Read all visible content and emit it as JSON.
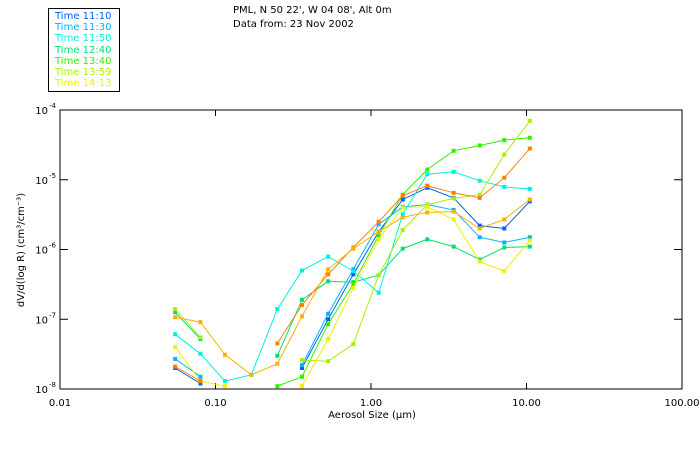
{
  "header": {
    "line1": "PML, N 50 22', W 04 08', Alt 0m",
    "line2": "Data from: 23 Nov 2002"
  },
  "chart_data": {
    "type": "line",
    "title": "PML, N 50 22', W 04 08', Alt 0m",
    "subtitle": "Data from: 23 Nov 2002",
    "xlabel": "Aerosol Size (µm)",
    "ylabel": "dV/d(log R)  (cm³/cm⁻³)",
    "xscale": "log",
    "yscale": "log",
    "xlim": [
      0.01,
      100
    ],
    "ylim": [
      1e-08,
      0.0001
    ],
    "xticks": [
      "0.01",
      "0.10",
      "1.00",
      "10.00",
      "100.00"
    ],
    "xtick_values": [
      0.01,
      0.1,
      1,
      10,
      100
    ],
    "yticks": [
      {
        "base": "10",
        "exp": "-4",
        "value": 0.0001
      },
      {
        "base": "10",
        "exp": "-5",
        "value": 1e-05
      },
      {
        "base": "10",
        "exp": "-6",
        "value": 1e-06
      },
      {
        "base": "10",
        "exp": "-7",
        "value": 1e-07
      },
      {
        "base": "10",
        "exp": "-8",
        "value": 1e-08
      }
    ],
    "grid": false,
    "legend_position": "top-left, outside plot",
    "x": [
      0.055,
      0.08,
      0.115,
      0.17,
      0.25,
      0.36,
      0.53,
      0.77,
      1.12,
      1.6,
      2.3,
      3.4,
      5.0,
      7.2,
      10.5
    ],
    "series": [
      {
        "name": "Time 11:10",
        "color": "#0060ff",
        "values": [
          2e-08,
          1.2e-08,
          null,
          null,
          null,
          2e-08,
          1e-07,
          4.4e-07,
          1.8e-06,
          5.2e-06,
          7.7e-06,
          5.5e-06,
          2.2e-06,
          2e-06,
          4.9e-06
        ]
      },
      {
        "name": "Time 11:30",
        "color": "#00b4ff",
        "values": [
          2.7e-08,
          1.5e-08,
          null,
          null,
          null,
          2.2e-08,
          1.2e-07,
          5.2e-07,
          2.3e-06,
          4.1e-06,
          4.4e-06,
          3.7e-06,
          1.5e-06,
          1.26e-06,
          1.5e-06
        ]
      },
      {
        "name": "Time 11:50",
        "color": "#00f0e0",
        "values": [
          6.1e-08,
          3.2e-08,
          1.3e-08,
          1.6e-08,
          1.4e-07,
          5e-07,
          7.9e-07,
          4.9e-07,
          2.4e-07,
          3.2e-06,
          1.2e-05,
          1.3e-05,
          9.7e-06,
          7.9e-06,
          7.4e-06
        ]
      },
      {
        "name": "Time 12:40",
        "color": "#00e070",
        "values": [
          1.26e-07,
          5.2e-08,
          null,
          null,
          3e-08,
          1.9e-07,
          3.5e-07,
          3.4e-07,
          4.3e-07,
          1.03e-06,
          1.4e-06,
          1.1e-06,
          7.2e-07,
          1.07e-06,
          1.1e-06
        ]
      },
      {
        "name": "Time 13:40",
        "color": "#30f000",
        "values": [
          null,
          null,
          null,
          null,
          1.1e-08,
          1.5e-08,
          8.5e-08,
          3.2e-07,
          1.6e-06,
          6.1e-06,
          1.4e-05,
          2.6e-05,
          3.1e-05,
          3.7e-05,
          4e-05
        ]
      },
      {
        "name": "Time 13:59",
        "color": "#a8f000",
        "values": [
          1.4e-07,
          5.5e-08,
          null,
          null,
          null,
          2.6e-08,
          2.5e-08,
          4.4e-08,
          4.3e-07,
          1.9e-06,
          4.4e-06,
          5.4e-06,
          6.1e-06,
          2.3e-05,
          7e-05
        ]
      },
      {
        "name": "Time 14:13",
        "color": "#f0f000",
        "values": [
          4e-08,
          1.3e-08,
          1.1e-08,
          null,
          null,
          1.1e-08,
          5.2e-08,
          2.8e-07,
          1.4e-06,
          4e-06,
          4.1e-06,
          2.7e-06,
          6.7e-07,
          4.9e-07,
          1.35e-06
        ]
      },
      {
        "name": "",
        "color": "#ff8000",
        "values": [
          2.1e-08,
          1.3e-08,
          null,
          null,
          4.5e-08,
          1.6e-07,
          4.4e-07,
          1.07e-06,
          2.5e-06,
          5.9e-06,
          8.2e-06,
          6.5e-06,
          5.5e-06,
          1.07e-05,
          2.8e-05
        ]
      },
      {
        "name": "",
        "color": "#ffb000",
        "values": [
          1.07e-07,
          9.1e-08,
          3.1e-08,
          1.6e-08,
          2.3e-08,
          1.1e-07,
          5.2e-07,
          1.03e-06,
          1.8e-06,
          2.9e-06,
          3.4e-06,
          3.5e-06,
          2e-06,
          2.7e-06,
          5.2e-06
        ]
      }
    ]
  }
}
